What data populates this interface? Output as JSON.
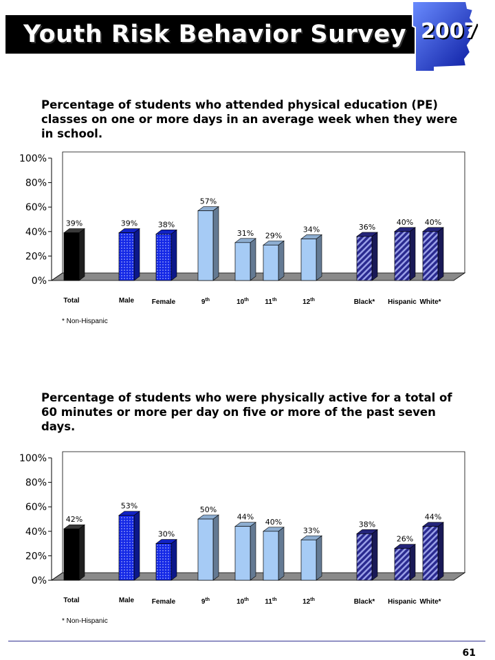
{
  "header": {
    "title": "Youth Risk Behavior Survey",
    "year": "2007"
  },
  "page_number": "61",
  "colors": {
    "total": "#000000",
    "gender": "#1428e6",
    "grade": "#a6cbf5",
    "race": "#2a2a90",
    "floor": "#8a8a8a"
  },
  "chart_data": [
    {
      "type": "bar",
      "title": "Percentage of students who attended physical education (PE) classes on one or more days in an average week when they were in school.",
      "categories": [
        {
          "main": "Total",
          "sup": ""
        },
        {
          "main": "Male",
          "sup": ""
        },
        {
          "main": "Female",
          "sup": ""
        },
        {
          "main": "9",
          "sup": "th"
        },
        {
          "main": "10",
          "sup": "th"
        },
        {
          "main": "11",
          "sup": "th"
        },
        {
          "main": "12",
          "sup": "th"
        },
        {
          "main": "Black*",
          "sup": ""
        },
        {
          "main": "Hispanic",
          "sup": ""
        },
        {
          "main": "White*",
          "sup": ""
        }
      ],
      "values": [
        39,
        39,
        38,
        57,
        31,
        29,
        34,
        36,
        40,
        40
      ],
      "value_labels": [
        "39%",
        "39%",
        "38%",
        "57%",
        "31%",
        "29%",
        "34%",
        "36%",
        "40%",
        "40%"
      ],
      "groups": [
        "total",
        "gender",
        "gender",
        "grade",
        "grade",
        "grade",
        "grade",
        "race",
        "race",
        "race"
      ],
      "ylim": [
        0,
        100
      ],
      "yticks": [
        "0%",
        "20%",
        "40%",
        "60%",
        "80%",
        "100%"
      ],
      "footnote": "* Non-Hispanic"
    },
    {
      "type": "bar",
      "title": "Percentage of students who were physically active for a total of 60 minutes or more per day on five or more of the past seven days.",
      "categories": [
        {
          "main": "Total",
          "sup": ""
        },
        {
          "main": "Male",
          "sup": ""
        },
        {
          "main": "Female",
          "sup": ""
        },
        {
          "main": "9",
          "sup": "th"
        },
        {
          "main": "10",
          "sup": "th"
        },
        {
          "main": "11",
          "sup": "th"
        },
        {
          "main": "12",
          "sup": "th"
        },
        {
          "main": "Black*",
          "sup": ""
        },
        {
          "main": "Hispanic",
          "sup": ""
        },
        {
          "main": "White*",
          "sup": ""
        }
      ],
      "values": [
        42,
        53,
        30,
        50,
        44,
        40,
        33,
        38,
        26,
        44
      ],
      "value_labels": [
        "42%",
        "53%",
        "30%",
        "50%",
        "44%",
        "40%",
        "33%",
        "38%",
        "26%",
        "44%"
      ],
      "groups": [
        "total",
        "gender",
        "gender",
        "grade",
        "grade",
        "grade",
        "grade",
        "race",
        "race",
        "race"
      ],
      "ylim": [
        0,
        100
      ],
      "yticks": [
        "0%",
        "20%",
        "40%",
        "60%",
        "80%",
        "100%"
      ],
      "footnote": "* Non-Hispanic"
    }
  ]
}
